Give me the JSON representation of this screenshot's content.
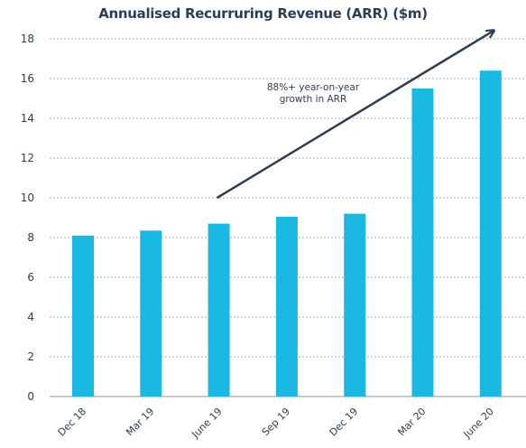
{
  "chart_data": {
    "type": "bar",
    "title": "Annualised Recurruring Revenue (ARR) ($m)",
    "xlabel": "",
    "ylabel": "",
    "categories": [
      "Dec 18",
      "Mar 19",
      "June 19",
      "Sep 19",
      "Dec 19",
      "Mar 20",
      "June 20"
    ],
    "values": [
      8.1,
      8.35,
      8.7,
      9.05,
      9.2,
      15.5,
      16.4
    ],
    "ylim": [
      0,
      18
    ],
    "yticks": [
      0,
      2,
      4,
      6,
      8,
      10,
      12,
      14,
      16,
      18
    ],
    "grid": true,
    "legend": "none",
    "bar_color": "#1ab9e4",
    "annotation": {
      "lines": [
        "88%+ year-on-year",
        "growth in ARR"
      ],
      "arrow": {
        "from": [
          2,
          10
        ],
        "to": [
          6,
          18.4
        ]
      }
    }
  }
}
